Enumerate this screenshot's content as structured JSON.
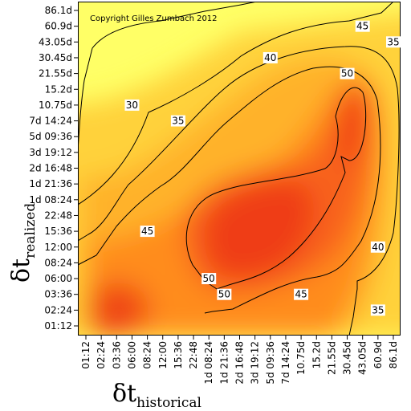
{
  "chart_data": {
    "type": "heatmap",
    "copyright": "Copyright Gilles Zumbach 2012",
    "xlabel": {
      "main": "δt",
      "sub": "historical"
    },
    "ylabel": {
      "main": "δt",
      "sub": "realized"
    },
    "x_ticks": [
      "01:12",
      "02:24",
      "03:36",
      "06:00",
      "08:24",
      "12:00",
      "15:36",
      "22:48",
      "1d 08:24",
      "1d 21:36",
      "2d 16:48",
      "3d 19:12",
      "5d 09:36",
      "7d 14:24",
      "10.75d",
      "15.2d",
      "21.55d",
      "30.45d",
      "43.05d",
      "60.9d",
      "86.1d"
    ],
    "y_ticks": [
      "01:12",
      "02:24",
      "03:36",
      "06:00",
      "08:24",
      "12:00",
      "15:36",
      "22:48",
      "1d 08:24",
      "1d 21:36",
      "2d 16:48",
      "3d 19:12",
      "5d 09:36",
      "7d 14:24",
      "10.75d",
      "15.2d",
      "21.55d",
      "30.45d",
      "43.05d",
      "60.9d",
      "86.1d"
    ],
    "contour_levels": [
      30,
      35,
      40,
      45,
      50
    ],
    "contour_labels": [
      {
        "text": "30",
        "x_tick": "06:00",
        "y_tick": "10.75d"
      },
      {
        "text": "35",
        "x_tick": "15:36",
        "y_tick": "7d 14:24"
      },
      {
        "text": "40",
        "x_tick": "5d 09:36",
        "y_tick": "30.45d"
      },
      {
        "text": "45",
        "x_tick": "43.05d",
        "y_tick": "60.9d"
      },
      {
        "text": "50",
        "x_tick": "30.45d",
        "y_tick": "21.55d"
      },
      {
        "text": "45",
        "x_tick": "08:24",
        "y_tick": "15:36"
      },
      {
        "text": "50",
        "x_tick": "1d 08:24",
        "y_tick": "06:00"
      },
      {
        "text": "50",
        "x_tick": "1d 21:36",
        "y_tick": "03:36"
      },
      {
        "text": "45",
        "x_tick": "10.75d",
        "y_tick": "03:36"
      },
      {
        "text": "40",
        "x_tick": "60.9d",
        "y_tick": "12:00"
      },
      {
        "text": "35",
        "x_tick": "60.9d",
        "y_tick": "02:24"
      },
      {
        "text": "35",
        "x_tick": "86.1d",
        "y_tick": "43.05d"
      }
    ],
    "colors": {
      "low": "#ffff55",
      "mid": "#ffa020",
      "high": "#f03a0c"
    },
    "grid": false
  }
}
